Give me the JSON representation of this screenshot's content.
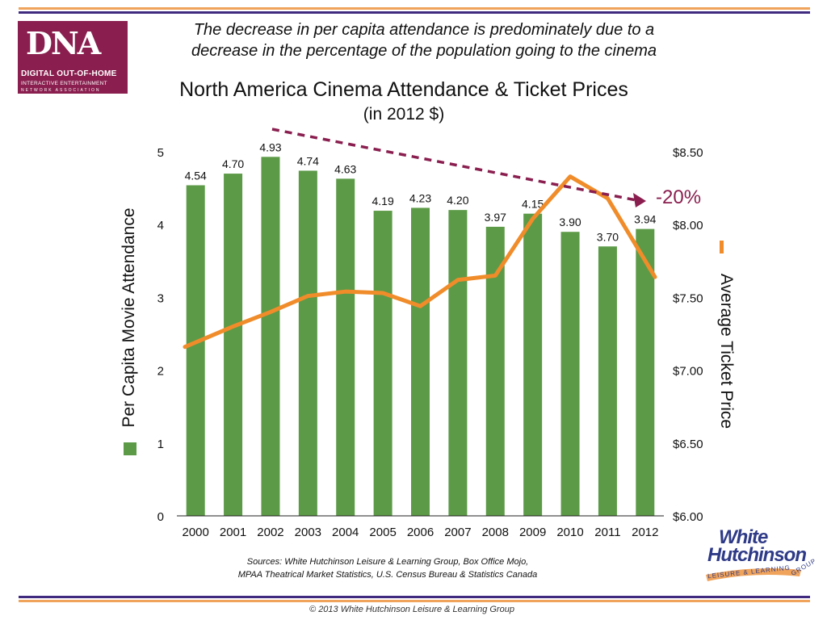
{
  "logo": {
    "mark": "DNA",
    "line1": "DIGITAL OUT-OF-HOME",
    "line2": "INTERACTIVE ENTERTAINMENT",
    "line3": "NETWORK ASSOCIATION",
    "background": "#8a1f4f"
  },
  "subtitle_line1": "The decrease in per capita attendance is predominately due to a",
  "subtitle_line2": "decrease in the percentage of the population going to the cinema",
  "colors": {
    "rule_orange": "#f0a35a",
    "rule_purple": "#3f2a80",
    "bar_green": "#5c9a47",
    "line_orange": "#f08c2a",
    "trend_maroon": "#8a1f4f"
  },
  "chart_data": {
    "type": "bar",
    "title": "North America Cinema Attendance & Ticket Prices",
    "subtitle": "(in 2012 $)",
    "categories": [
      "2000",
      "2001",
      "2002",
      "2003",
      "2004",
      "2005",
      "2006",
      "2007",
      "2008",
      "2009",
      "2010",
      "2011",
      "2012"
    ],
    "series": [
      {
        "name": "Per Capita Movie Attendance",
        "type": "bar",
        "axis": "left",
        "values": [
          4.54,
          4.7,
          4.93,
          4.74,
          4.63,
          4.19,
          4.23,
          4.2,
          3.97,
          4.15,
          3.9,
          3.7,
          3.94
        ],
        "labels": [
          "4.54",
          "4.70",
          "4.93",
          "4.74",
          "4.63",
          "4.19",
          "4.23",
          "4.20",
          "3.97",
          "4.15",
          "3.90",
          "3.70",
          "3.94"
        ]
      },
      {
        "name": "Average Ticket Price",
        "type": "line",
        "axis": "right",
        "values": [
          7.16,
          7.3,
          7.4,
          7.51,
          7.54,
          7.53,
          7.44,
          7.62,
          7.65,
          8.04,
          8.33,
          8.18,
          7.64
        ]
      }
    ],
    "ylabel": "Per Capita Movie Attendance",
    "y2label": "Average Ticket Price",
    "ylim": [
      0,
      5
    ],
    "y2lim": [
      6.0,
      8.5
    ],
    "yticks": [
      "0",
      "1",
      "2",
      "3",
      "4",
      "5"
    ],
    "y2ticks": [
      "$6.00",
      "$6.50",
      "$7.00",
      "$7.50",
      "$8.00",
      "$8.50"
    ],
    "y2tick_values": [
      6.0,
      6.5,
      7.0,
      7.5,
      8.0,
      8.5
    ],
    "annotation": {
      "text": "-20%",
      "arrow_from": {
        "x": "2002",
        "y": 5.3
      },
      "arrow_to": {
        "x": "2011.5",
        "y": 4.3
      }
    },
    "grid": false,
    "legend": "axis-labels"
  },
  "sources": {
    "line1": "Sources:  White Hutchinson Leisure & Learning Group, Box Office Mojo,",
    "line2": "MPAA Theatrical Market Statistics, U.S. Census Bureau & Statistics Canada"
  },
  "wh_logo": {
    "line1": "White",
    "line2": "Hutchinson",
    "band": "LEISURE & LEARNING",
    "group": "GROUP"
  },
  "copyright": "© 2013 White Hutchinson Leisure & Learning Group"
}
